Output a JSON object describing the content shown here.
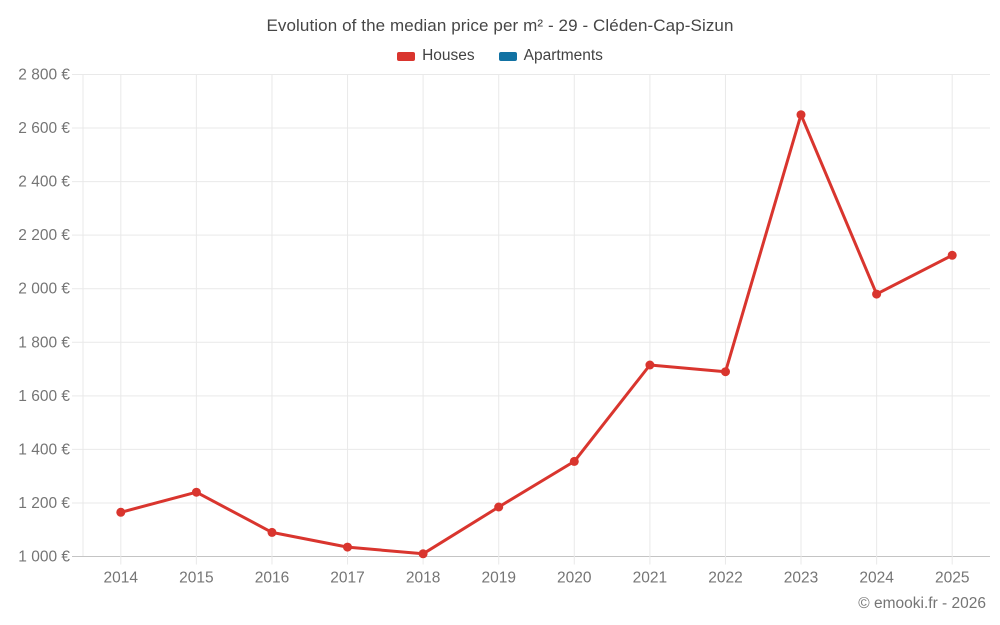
{
  "title": "Evolution of the median price per m² - 29 - Cléden-Cap-Sizun",
  "legend": [
    {
      "label": "Houses",
      "color": "#d9352e"
    },
    {
      "label": "Apartments",
      "color": "#1272a3"
    }
  ],
  "copyright": "© emooki.fr - 2026",
  "colors": {
    "houses": "#d9352e",
    "apartments": "#1272a3",
    "grid": "#e9e9e9",
    "axis_line": "#c4c4c4",
    "tick_label": "#757575",
    "title_text": "#464646",
    "background": "#ffffff"
  },
  "chart_data": {
    "type": "line",
    "title": "Evolution of the median price per m² - 29 - Cléden-Cap-Sizun",
    "categories": [
      "2014",
      "2015",
      "2016",
      "2017",
      "2018",
      "2019",
      "2020",
      "2021",
      "2022",
      "2023",
      "2024",
      "2025"
    ],
    "series": [
      {
        "name": "Houses",
        "color": "#d9352e",
        "values": [
          1165,
          1240,
          1090,
          1035,
          1010,
          1185,
          1355,
          1715,
          1690,
          2650,
          1980,
          2125
        ]
      },
      {
        "name": "Apartments",
        "color": "#1272a3",
        "values": []
      }
    ],
    "xlabel": "",
    "ylabel": "",
    "ylim": [
      1000,
      2800
    ],
    "y_ticks": {
      "values": [
        1000,
        1200,
        1400,
        1600,
        1800,
        2000,
        2200,
        2400,
        2600,
        2800
      ],
      "labels": [
        "1 000 €",
        "1 200 €",
        "1 400 €",
        "1 600 €",
        "1 800 €",
        "2 000 €",
        "2 200 €",
        "2 400 €",
        "2 600 €",
        "2 800 €"
      ]
    },
    "grid": true,
    "legend_position": "top"
  }
}
